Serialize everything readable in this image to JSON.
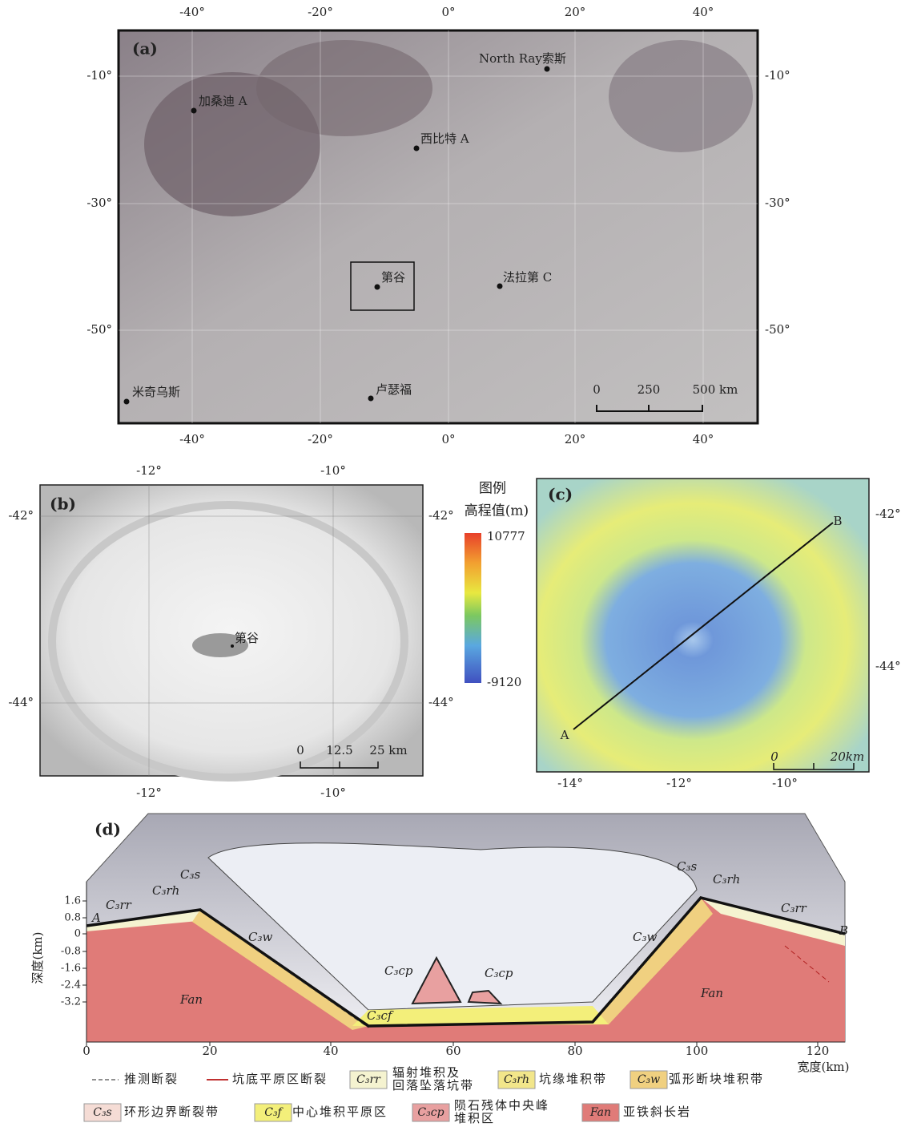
{
  "panel_a": {
    "label": "(a)",
    "top_ticks": [
      "-40°",
      "-20°",
      "0°",
      "20°",
      "40°"
    ],
    "bottom_ticks": [
      "-40°",
      "-20°",
      "0°",
      "20°",
      "40°"
    ],
    "left_ticks": [
      "-10°",
      "-30°",
      "-50°"
    ],
    "right_ticks": [
      "-10°",
      "-30°",
      "-50°"
    ],
    "places": [
      "North Ray索斯",
      "加桑迪 A",
      "西比特 A",
      "第谷",
      "法拉第 C",
      "米奇乌斯",
      "卢瑟福"
    ],
    "scale": [
      "0",
      "250",
      "500 km"
    ]
  },
  "panel_b": {
    "label": "(b)",
    "top_ticks": [
      "-12°",
      "-10°"
    ],
    "bottom_ticks": [
      "-12°",
      "-10°"
    ],
    "left_ticks": [
      "-42°",
      "-44°"
    ],
    "right_ticks": [
      "-42°",
      "-44°"
    ],
    "place": "第谷",
    "scale": [
      "0",
      "12.5",
      "25 km"
    ]
  },
  "elevation_legend": {
    "title": "图例",
    "subtitle": "高程值(m)",
    "max": "10777",
    "min": "-9120"
  },
  "panel_c": {
    "label": "(c)",
    "bottom_ticks": [
      "-14°",
      "-12°",
      "-10°"
    ],
    "right_ticks": [
      "-42°",
      "-44°"
    ],
    "point_a": "A",
    "point_b": "B",
    "scale": [
      "0",
      "20km"
    ]
  },
  "panel_d": {
    "label": "(d)",
    "y_title": "深度(km)",
    "x_title": "宽度(km)",
    "yticks": [
      "1.6",
      "0.8",
      "0",
      "-0.8",
      "-1.6",
      "-2.4",
      "-3.2"
    ],
    "xticks": [
      "0",
      "20",
      "40",
      "60",
      "80",
      "100",
      "120"
    ],
    "units": [
      "A",
      "B",
      "C₃rr",
      "C₃rh",
      "C₃s",
      "C₃w",
      "C₃cp",
      "C₃cp",
      "C₃cf",
      "C₃w",
      "C₃s",
      "C₃rh",
      "C₃rr",
      "Fan",
      "Fan"
    ]
  },
  "legend": [
    {
      "symbol": "",
      "lines": [
        "推测断裂"
      ]
    },
    {
      "symbol": "",
      "lines": [
        "坑底平原区断裂"
      ]
    },
    {
      "symbol": "C₃rr",
      "lines": [
        "辐射堆积及",
        "回落坠落坑带"
      ]
    },
    {
      "symbol": "C₃rh",
      "lines": [
        "坑缘堆积带"
      ]
    },
    {
      "symbol": "C₃w",
      "lines": [
        "弧形断块堆积带"
      ]
    },
    {
      "symbol": "C₃s",
      "lines": [
        "环形边界断裂带"
      ]
    },
    {
      "symbol": "C₃f",
      "lines": [
        "中心堆积平原区"
      ]
    },
    {
      "symbol": "C₃cp",
      "lines": [
        "陨石残体中央峰",
        "堆积区"
      ]
    },
    {
      "symbol": "Fan",
      "lines": [
        "亚铁斜长岩"
      ]
    }
  ]
}
